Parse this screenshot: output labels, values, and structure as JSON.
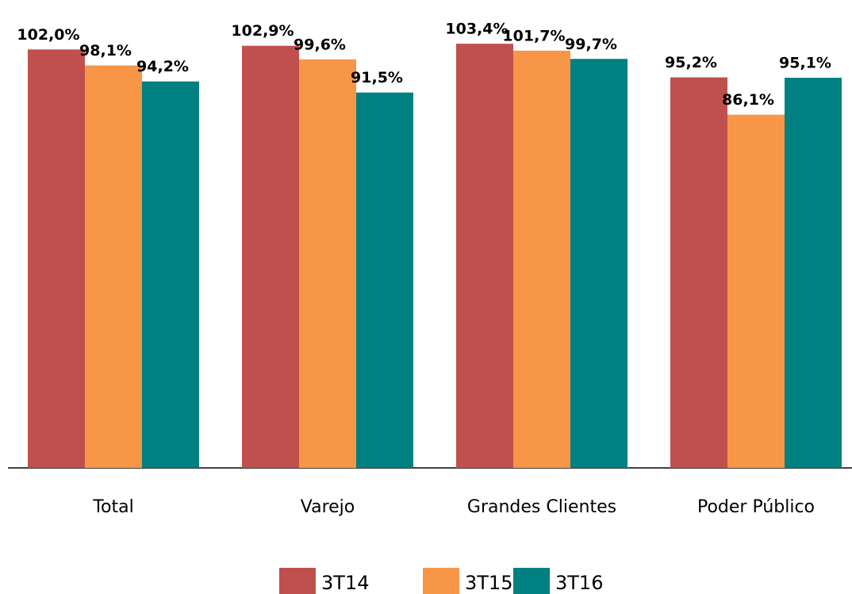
{
  "chart_data": {
    "type": "bar",
    "categories": [
      "Total",
      "Varejo",
      "Grandes Clientes",
      "Poder Público"
    ],
    "series": [
      {
        "name": "3T14",
        "color": "#c0504d",
        "values": [
          102.0,
          102.9,
          103.4,
          95.2
        ],
        "value_labels": [
          "102,0%",
          "102,9%",
          "103,4%",
          "95,2%"
        ]
      },
      {
        "name": "3T15",
        "color": "#f79646",
        "values": [
          98.1,
          99.6,
          101.7,
          86.1
        ],
        "value_labels": [
          "98,1%",
          "99,6%",
          "101,7%",
          "86,1%"
        ]
      },
      {
        "name": "3T16",
        "color": "#008080",
        "values": [
          94.2,
          91.5,
          99.7,
          95.1
        ],
        "value_labels": [
          "94,2%",
          "91,5%",
          "99,7%",
          "95,1%"
        ]
      }
    ],
    "ylim": [
      0,
      110
    ],
    "legend": "bottom"
  }
}
